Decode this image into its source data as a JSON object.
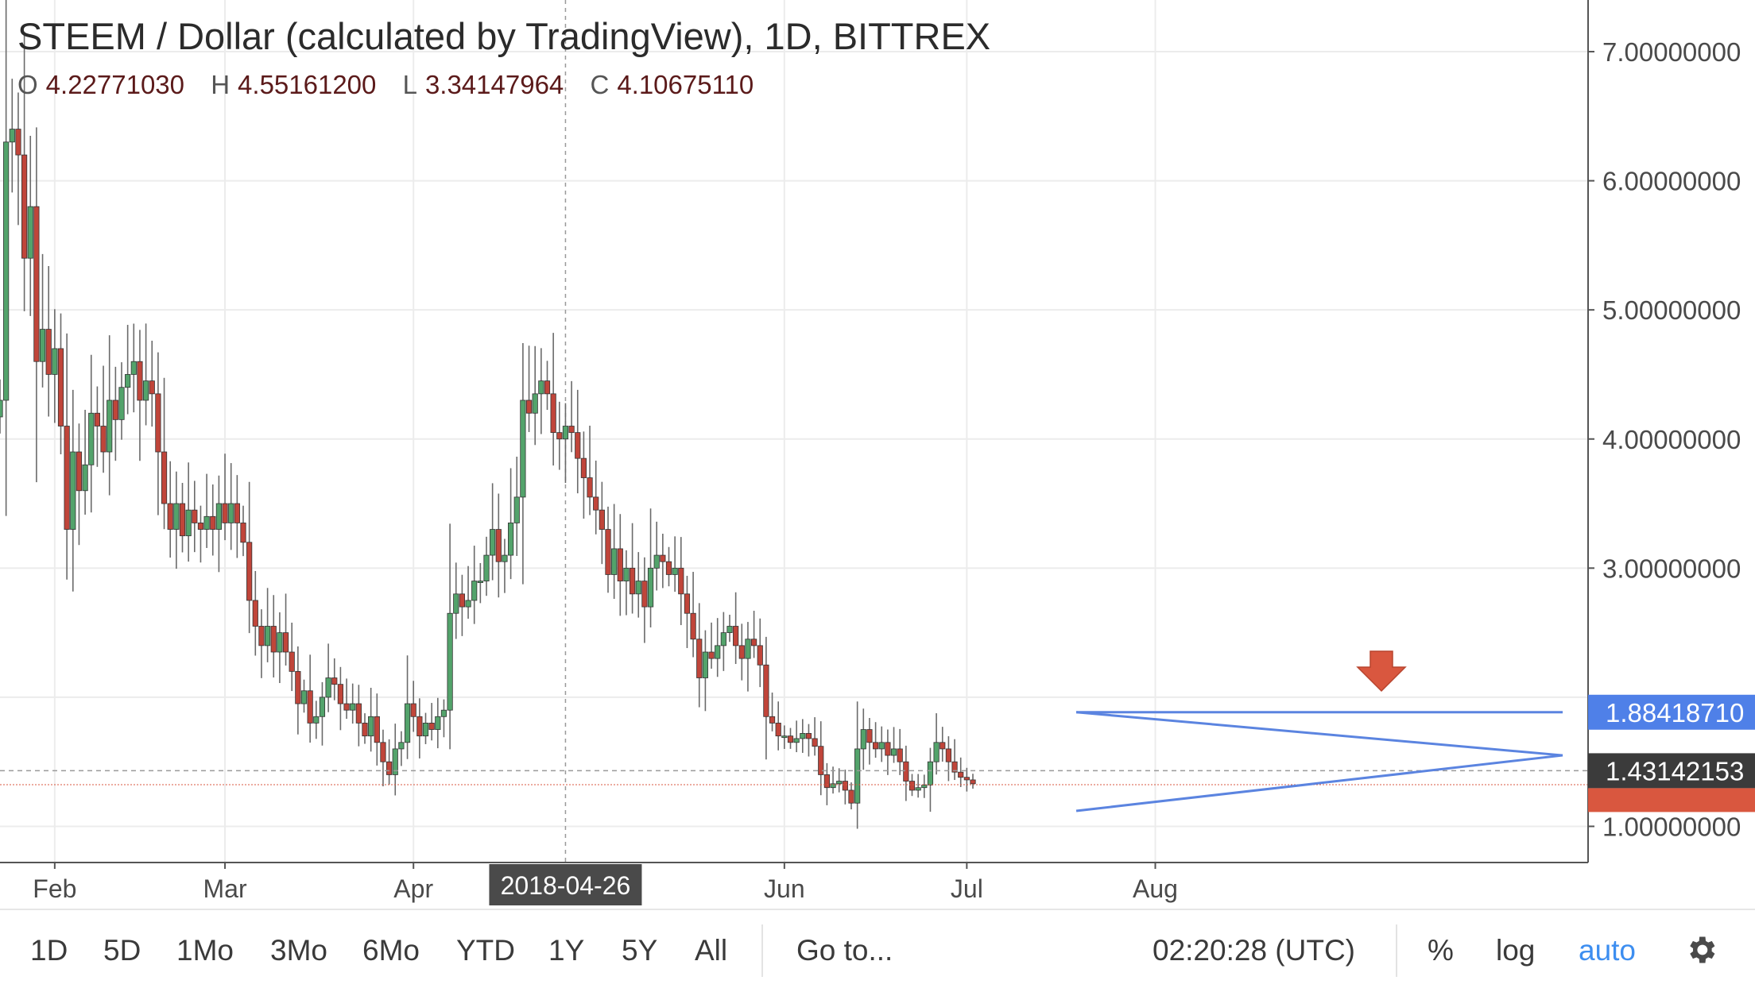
{
  "header": {
    "title": "STEEM / Dollar (calculated by TradingView), 1D, BITTREX",
    "ohlc": [
      {
        "key": "O",
        "value": "4.22771030"
      },
      {
        "key": "H",
        "value": "4.55161200"
      },
      {
        "key": "L",
        "value": "3.34147964"
      },
      {
        "key": "C",
        "value": "4.10675110"
      }
    ]
  },
  "toolbar": {
    "ranges": [
      "1D",
      "5D",
      "1Mo",
      "3Mo",
      "6Mo",
      "YTD",
      "1Y",
      "5Y",
      "All"
    ],
    "goto_label": "Go to...",
    "time": "02:20:28 (UTC)",
    "percent_label": "%",
    "log_label": "log",
    "auto_label": "auto",
    "settings_icon": "gear-icon"
  },
  "colors": {
    "up": "#53a36b",
    "down": "#c0453a",
    "wick": "#6a6a6a",
    "trendline": "#5b84e0",
    "price_label_blue": "#4f80e8",
    "price_label_dark": "#3b3b3b",
    "arrow": "#d9573f"
  },
  "chart_data": {
    "type": "candlestick",
    "title": "STEEM / Dollar (calculated by TradingView), 1D, BITTREX",
    "ylim": [
      0.72,
      7.4
    ],
    "y_ticks": [
      "7.00000000",
      "6.00000000",
      "5.00000000",
      "4.00000000",
      "3.00000000",
      "1.00000000"
    ],
    "y_tick_values": [
      7,
      6,
      5,
      4,
      3,
      1
    ],
    "x_ticks": [
      {
        "label": "Feb",
        "day": 10
      },
      {
        "label": "Mar",
        "day": 38
      },
      {
        "label": "Apr",
        "day": 69
      },
      {
        "label": "Jun",
        "day": 130
      },
      {
        "label": "Jul",
        "day": 160
      },
      {
        "label": "Aug",
        "day": 191
      }
    ],
    "crosshair": {
      "label": "2018-04-26",
      "day": 94
    },
    "price_labels": [
      {
        "value": "1.88418710",
        "y": 1.884,
        "style": "blue"
      },
      {
        "value": "1.43142153",
        "y": 1.431,
        "style": "dark"
      }
    ],
    "last_price_line": 1.323,
    "closes": [
      4.3,
      6.3,
      6.4,
      6.2,
      5.4,
      5.8,
      4.6,
      4.85,
      4.5,
      4.7,
      4.1,
      3.3,
      3.9,
      3.6,
      3.8,
      4.2,
      4.1,
      3.9,
      4.3,
      4.15,
      4.4,
      4.5,
      4.6,
      4.3,
      4.45,
      4.35,
      3.9,
      3.5,
      3.3,
      3.5,
      3.25,
      3.45,
      3.35,
      3.3,
      3.4,
      3.3,
      3.5,
      3.35,
      3.5,
      3.35,
      3.2,
      2.75,
      2.55,
      2.4,
      2.55,
      2.35,
      2.5,
      2.35,
      2.2,
      1.95,
      2.05,
      1.8,
      1.85,
      2.0,
      2.15,
      2.1,
      1.95,
      1.9,
      1.95,
      1.8,
      1.7,
      1.85,
      1.65,
      1.5,
      1.4,
      1.6,
      1.65,
      1.95,
      1.85,
      1.7,
      1.8,
      1.75,
      1.85,
      1.9,
      2.65,
      2.8,
      2.7,
      2.75,
      2.9,
      2.9,
      3.1,
      3.3,
      3.05,
      3.1,
      3.35,
      3.55,
      4.3,
      4.2,
      4.35,
      4.45,
      4.35,
      4.05,
      4.0,
      4.1,
      4.05,
      3.85,
      3.7,
      3.55,
      3.45,
      3.3,
      2.95,
      3.15,
      2.9,
      3.0,
      2.8,
      2.9,
      2.7,
      3.0,
      3.1,
      3.05,
      2.95,
      3.0,
      2.8,
      2.65,
      2.45,
      2.15,
      2.35,
      2.3,
      2.4,
      2.5,
      2.55,
      2.4,
      2.3,
      2.45,
      2.4,
      2.25,
      1.85,
      1.8,
      1.7,
      1.7,
      1.65,
      1.68,
      1.72,
      1.68,
      1.62,
      1.4,
      1.3,
      1.33,
      1.35,
      1.28,
      1.18,
      1.6,
      1.75,
      1.65,
      1.6,
      1.65,
      1.55,
      1.6,
      1.5,
      1.35,
      1.28,
      1.3,
      1.32,
      1.5,
      1.65,
      1.6,
      1.5,
      1.42,
      1.38,
      1.36,
      1.33
    ],
    "opens_shift": "each candle opens at the previous close",
    "trendlines": [
      {
        "name": "resistance",
        "points": [
          [
            178,
            1.884
          ],
          [
            258,
            1.884
          ]
        ]
      },
      {
        "name": "upper-wedge",
        "points": [
          [
            178,
            1.884
          ],
          [
            258,
            1.55
          ]
        ]
      },
      {
        "name": "lower-wedge",
        "points": [
          [
            178,
            1.12
          ],
          [
            258,
            1.55
          ]
        ]
      }
    ]
  }
}
